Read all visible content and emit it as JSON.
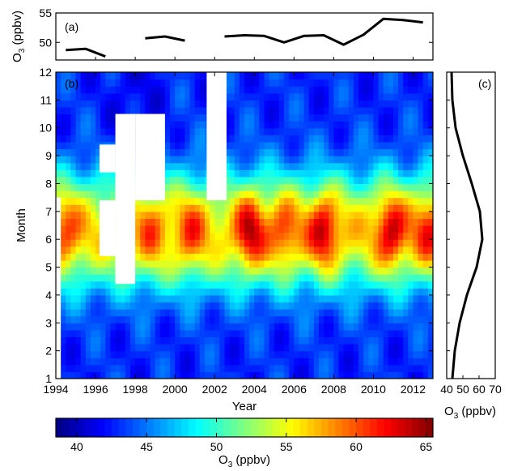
{
  "chart_data": [
    {
      "panel": "(a)",
      "type": "line",
      "ylabel_main": "O",
      "ylabel_sub": "3",
      "ylabel_unit": " (ppbv)",
      "xlim": [
        1994,
        2013
      ],
      "ylim": [
        47,
        55
      ],
      "yticks": [
        50,
        55
      ],
      "x": [
        1994.5,
        1995.5,
        1996.5,
        1998.5,
        1999.5,
        2000.5,
        2002.5,
        2003.5,
        2004.5,
        2005.5,
        2006.5,
        2007.5,
        2008.5,
        2009.5,
        2010.5,
        2011.5,
        2012.5
      ],
      "y": [
        48.7,
        48.9,
        47.6,
        50.7,
        51.0,
        50.3,
        51.0,
        51.2,
        51.1,
        50.0,
        51.1,
        51.2,
        49.6,
        51.3,
        54.0,
        53.8,
        53.4
      ],
      "gaps_after_x": [
        1996.5,
        2000.5
      ]
    },
    {
      "panel": "(b)",
      "type": "heatmap",
      "xlabel": "Year",
      "ylabel": "Month",
      "xlim": [
        1994,
        2013
      ],
      "ylim": [
        1,
        12
      ],
      "xticks": [
        1994,
        1996,
        1998,
        2000,
        2002,
        2004,
        2006,
        2008,
        2010,
        2012
      ],
      "yticks": [
        1,
        2,
        3,
        4,
        5,
        6,
        7,
        8,
        9,
        10,
        11,
        12
      ],
      "summer_peaks": [
        {
          "year": 1994.5,
          "month": 6.3,
          "value": 61
        },
        {
          "year": 1998.8,
          "month": 6.2,
          "value": 60
        },
        {
          "year": 2000.8,
          "month": 6.0,
          "value": 61
        },
        {
          "year": 2003.8,
          "month": 6.5,
          "value": 64
        },
        {
          "year": 2005.5,
          "month": 6.2,
          "value": 61
        },
        {
          "year": 2007.5,
          "month": 6.6,
          "value": 64
        },
        {
          "year": 2010.9,
          "month": 6.4,
          "value": 64
        },
        {
          "year": 2012.8,
          "month": 5.8,
          "value": 62
        }
      ],
      "missing_data": [
        {
          "x": [
            1994.0,
            1994.25
          ],
          "y": [
            1,
            7.5
          ]
        },
        {
          "x": [
            1996.2,
            1997.0
          ],
          "y": [
            5.4,
            7.4
          ]
        },
        {
          "x": [
            1996.2,
            1997.0
          ],
          "y": [
            8.4,
            9.4
          ]
        },
        {
          "x": [
            1997.0,
            1998.0
          ],
          "y": [
            4.4,
            10.5
          ]
        },
        {
          "x": [
            1998.0,
            1999.5
          ],
          "y": [
            7.4,
            10.5
          ]
        },
        {
          "x": [
            2001.6,
            2002.6
          ],
          "y": [
            7.4,
            12
          ]
        }
      ]
    },
    {
      "panel": "(c)",
      "type": "line",
      "xlabel_main": "O",
      "xlabel_sub": "3",
      "xlabel_unit": " (ppbv)",
      "xlim": [
        40,
        70
      ],
      "xticks": [
        40,
        50,
        60,
        70
      ],
      "ylim": [
        1,
        12
      ],
      "months": [
        1,
        2,
        3,
        4,
        5,
        6,
        7,
        8,
        9,
        10,
        11,
        12
      ],
      "values": [
        43.5,
        45.0,
        48.0,
        52.5,
        58.5,
        62.0,
        60.5,
        55.5,
        50.0,
        45.5,
        43.5,
        43.0
      ]
    },
    {
      "panel": "colorbar",
      "type": "colorbar",
      "label_main": "O",
      "label_sub": "3",
      "label_unit": " (ppbv)",
      "range": [
        38.5,
        65.5
      ],
      "ticks": [
        40,
        45,
        50,
        55,
        60,
        65
      ]
    }
  ]
}
